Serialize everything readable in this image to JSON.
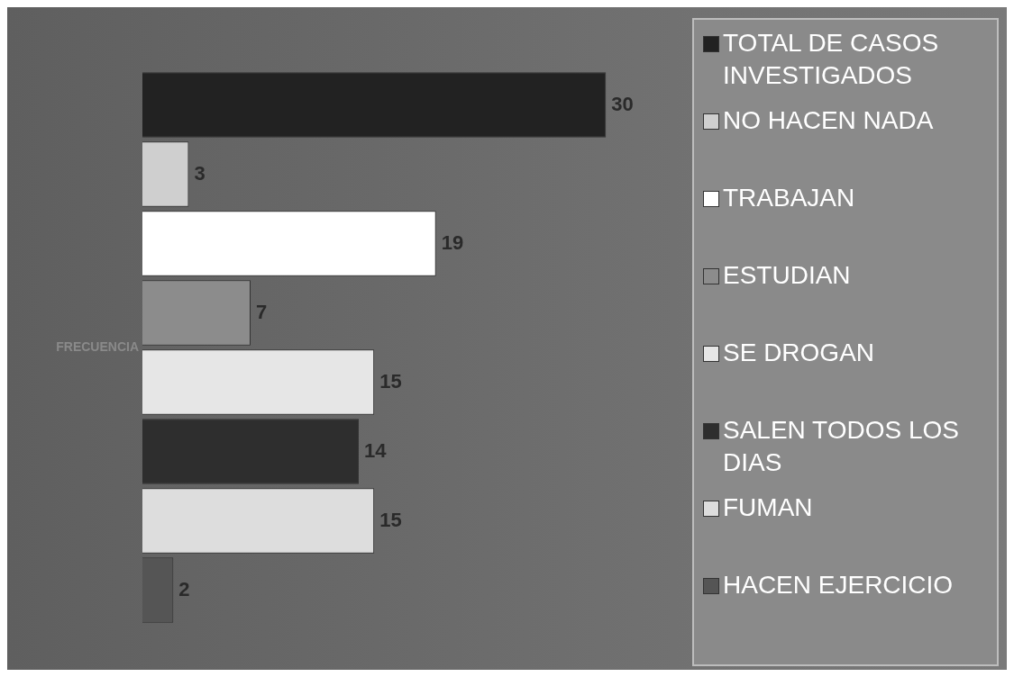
{
  "chart_data": {
    "type": "bar",
    "orientation": "horizontal",
    "ylabel": "FRECUENCIA",
    "categories": [
      "TOTAL DE CASOS INVESTIGADOS",
      "NO HACEN NADA",
      "TRABAJAN",
      "ESTUDIAN",
      "SE DROGAN",
      "SALEN TODOS LOS DIAS",
      "FUMAN",
      "HACEN EJERCICIO"
    ],
    "values": [
      30,
      3,
      19,
      7,
      15,
      14,
      15,
      2
    ],
    "colors": [
      "#222222",
      "#cfcfcf",
      "#ffffff",
      "#8c8c8c",
      "#e6e6e6",
      "#2e2e2e",
      "#dddddd",
      "#555555"
    ],
    "data_labels": true,
    "tick_labels": false
  }
}
